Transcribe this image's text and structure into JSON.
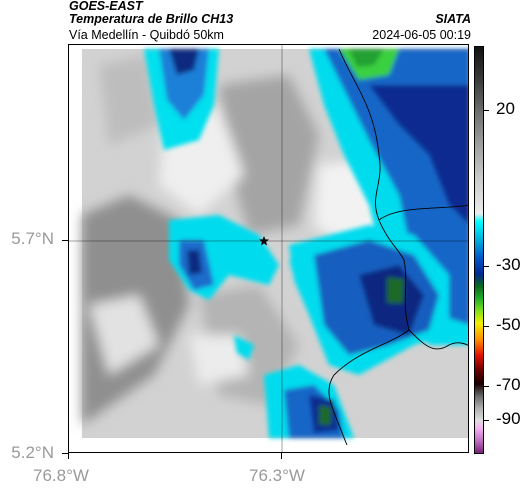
{
  "header": {
    "satellite": "GOES-EAST",
    "product": "Temperatura de Brillo CH13",
    "organization": "SIATA",
    "subtitle": "Vía Medellín - Quibdó 50km",
    "timestamp": "2024-06-05 00:19"
  },
  "axes": {
    "lat_ticks": [
      {
        "label": "5.7°N",
        "value": 5.7
      },
      {
        "label": "5.2°N",
        "value": 5.2
      }
    ],
    "lon_ticks": [
      {
        "label": "76.8°W",
        "value": -76.8
      },
      {
        "label": "76.3°W",
        "value": -76.3
      }
    ],
    "grid": true
  },
  "colorbar": {
    "labels": [
      "20",
      "-30",
      "-50",
      "-70",
      "-90"
    ],
    "colors": {
      "warm_gray": "#8c8c8c",
      "clear_white": "#f0f0f0",
      "cyan": "#00e5f0",
      "blue": "#0a3ca8",
      "dark_blue": "#06125a",
      "green": "#2fd030",
      "deep_green": "#1a6a2a"
    }
  },
  "map": {
    "marker": {
      "icon": "star-icon",
      "description": "Vía Medellín - Quibdó point"
    }
  }
}
